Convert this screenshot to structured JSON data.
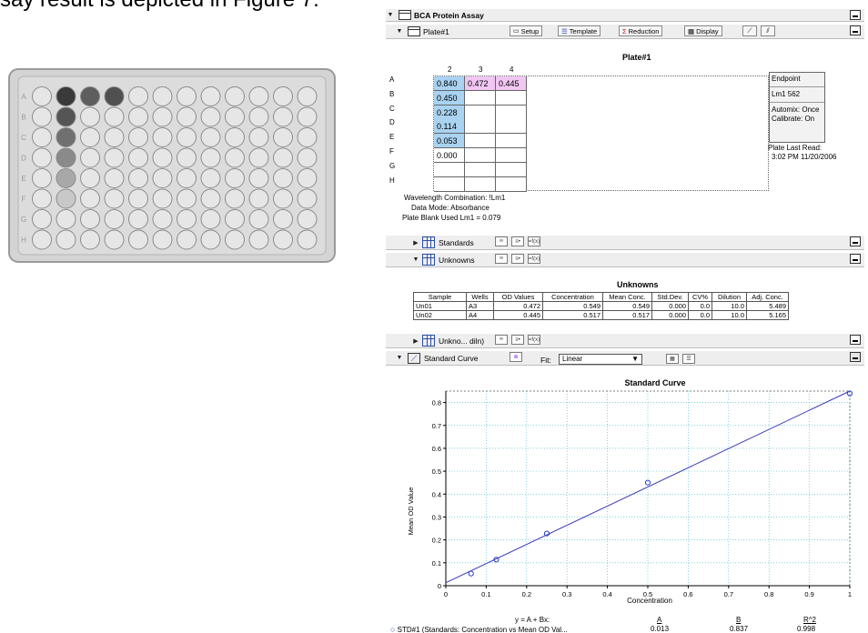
{
  "doc_text": "say result is depicted in Figure 7.",
  "plate_photo": {
    "row_letters": [
      "A",
      "B",
      "C",
      "D",
      "E",
      "F",
      "G",
      "H"
    ],
    "colors": {
      "frame": "#c9c9c9",
      "well": "#e6e6e6",
      "well_border": "#8c8c8c"
    }
  },
  "assay": {
    "title": "BCA Protein Assay",
    "plate_bar": {
      "label": "Plate#1",
      "setup": "Setup",
      "template": "Template",
      "reduction": "Reduction",
      "display": "Display"
    },
    "plate": {
      "title": "Plate#1",
      "columns": [
        "2",
        "3",
        "4"
      ],
      "rows": [
        "A",
        "B",
        "C",
        "D",
        "E",
        "F",
        "G",
        "H"
      ],
      "col2": [
        "0.840",
        "0.450",
        "0.228",
        "0.114",
        "0.053",
        "0.000",
        "",
        ""
      ],
      "col3": [
        "0.472",
        "",
        "",
        "",
        "",
        "",
        "",
        ""
      ],
      "col4": [
        "0.445",
        "",
        "",
        "",
        "",
        "",
        "",
        ""
      ],
      "colors": {
        "standard": "#a9d3f0",
        "unknown": "#f2c6f2"
      },
      "side": {
        "endpoint": "Endpoint",
        "lm": "Lm1  562",
        "automix": "Automix: Once",
        "calibrate": "Calibrate: On",
        "last_read_label": "Plate Last Read:",
        "last_read_value": "3:02 PM  11/20/2006"
      },
      "info": {
        "wavelength": "Wavelength Combination: !Lm1",
        "data_mode": "Data Mode: Absorbance",
        "blank": "Plate Blank Used   Lm1 = 0.079"
      }
    },
    "standards_bar": {
      "label": "Standards"
    },
    "unknowns_bar": {
      "label": "Unknowns"
    },
    "unknowns": {
      "title": "Unknowns",
      "headers": [
        "Sample",
        "Wells",
        "OD Values",
        "Concentration",
        "Mean Conc.",
        "Std.Dev.",
        "CV%",
        "Dilution",
        "Adj. Conc."
      ],
      "rows": [
        [
          "Un01",
          "A3",
          "0.472",
          "0.549",
          "0.549",
          "0.000",
          "0.0",
          "10.0",
          "5.489"
        ],
        [
          "Un02",
          "A4",
          "0.445",
          "0.517",
          "0.517",
          "0.000",
          "0.0",
          "10.0",
          "5.165"
        ]
      ]
    },
    "unknowns_diln_bar": {
      "label": "Unkno... diln)"
    },
    "curve_bar": {
      "label": "Standard Curve",
      "fit_label": "Fit:",
      "fit_value": "Linear"
    },
    "mini_icons": {
      "a": "ᵘᵘ",
      "b": "≡•",
      "c": "=f(x)"
    }
  },
  "chart_data": {
    "type": "scatter",
    "title": "Standard Curve",
    "xlabel": "Concentration",
    "ylabel": "Mean OD Value",
    "xlim": [
      0,
      1
    ],
    "ylim": [
      0,
      0.85
    ],
    "xticks": [
      "0",
      "0.1",
      "0.2",
      "0.3",
      "0.4",
      "0.5",
      "0.6",
      "0.7",
      "0.8",
      "0.9",
      "1"
    ],
    "yticks": [
      "0",
      "0.1",
      "0.2",
      "0.3",
      "0.4",
      "0.5",
      "0.6",
      "0.7",
      "0.8"
    ],
    "grid": true,
    "series": [
      {
        "x": [
          0.0625,
          0.125,
          0.25,
          0.5,
          1.0
        ],
        "y": [
          0.053,
          0.114,
          0.228,
          0.45,
          0.84
        ],
        "color": "#2b3fc9"
      }
    ],
    "fit_line": {
      "A": 0.013,
      "B": 0.837,
      "color": "#3a3ab8"
    },
    "legend": {
      "equation": "y = A + Bx:",
      "a_head": "A",
      "b_head": "B",
      "r2_head": "R^2",
      "entry": "STD#1 (Standards: Concentration vs Mean OD Val...",
      "a_val": "0.013",
      "b_val": "0.837",
      "r2_val": "0.998"
    }
  }
}
